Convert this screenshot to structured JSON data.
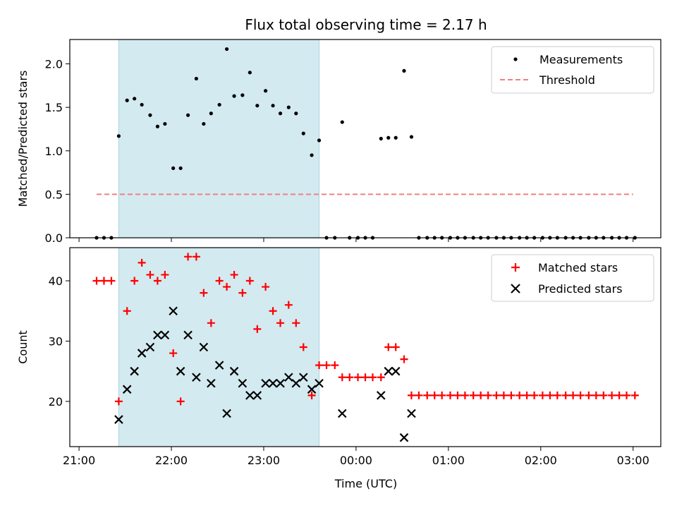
{
  "chart_data": {
    "title": "Flux total observing time = 2.17 h",
    "xlabel": "Time (UTC)",
    "x_unit": "hours",
    "x_tick_values": [
      21,
      22,
      23,
      24,
      25,
      26,
      27
    ],
    "x_tick_labels": [
      "21:00",
      "22:00",
      "23:00",
      "00:00",
      "01:00",
      "02:00",
      "03:00"
    ],
    "xlim": [
      20.9,
      27.3
    ],
    "observing_window": {
      "start": 21.43,
      "end": 23.6,
      "color": "#d3eaf0"
    },
    "panels": [
      {
        "type": "scatter",
        "ylabel": "Matched/Predicted stars",
        "ylim": [
          0,
          2.28
        ],
        "yticks": [
          0.0,
          0.5,
          1.0,
          1.5,
          2.0
        ],
        "ytick_labels": [
          "0.0",
          "0.5",
          "1.0",
          "1.5",
          "2.0"
        ],
        "legend_position": "top-right",
        "series": [
          {
            "name": "Measurements",
            "marker": "dot",
            "color": "#000000",
            "points": [
              [
                21.19,
                0
              ],
              [
                21.27,
                0
              ],
              [
                21.35,
                0
              ],
              [
                21.43,
                1.17
              ],
              [
                21.52,
                1.58
              ],
              [
                21.6,
                1.6
              ],
              [
                21.68,
                1.53
              ],
              [
                21.77,
                1.41
              ],
              [
                21.85,
                1.28
              ],
              [
                21.93,
                1.31
              ],
              [
                22.02,
                0.8
              ],
              [
                22.1,
                0.8
              ],
              [
                22.18,
                1.41
              ],
              [
                22.27,
                1.83
              ],
              [
                22.35,
                1.31
              ],
              [
                22.43,
                1.43
              ],
              [
                22.52,
                1.53
              ],
              [
                22.6,
                2.17
              ],
              [
                22.68,
                1.63
              ],
              [
                22.77,
                1.64
              ],
              [
                22.85,
                1.9
              ],
              [
                22.93,
                1.52
              ],
              [
                23.02,
                1.69
              ],
              [
                23.1,
                1.52
              ],
              [
                23.18,
                1.43
              ],
              [
                23.27,
                1.5
              ],
              [
                23.35,
                1.43
              ],
              [
                23.43,
                1.2
              ],
              [
                23.52,
                0.95
              ],
              [
                23.6,
                1.12
              ],
              [
                23.68,
                0
              ],
              [
                23.77,
                0
              ],
              [
                23.85,
                1.33
              ],
              [
                23.93,
                0
              ],
              [
                24.02,
                0
              ],
              [
                24.1,
                0
              ],
              [
                24.18,
                0
              ],
              [
                24.27,
                1.14
              ],
              [
                24.35,
                1.15
              ],
              [
                24.43,
                1.15
              ],
              [
                24.52,
                1.92
              ],
              [
                24.6,
                1.16
              ],
              [
                24.68,
                0
              ],
              [
                24.77,
                0
              ],
              [
                24.85,
                0
              ],
              [
                24.93,
                0
              ],
              [
                25.02,
                0
              ],
              [
                25.1,
                0
              ],
              [
                25.18,
                0
              ],
              [
                25.27,
                0
              ],
              [
                25.35,
                0
              ],
              [
                25.43,
                0
              ],
              [
                25.52,
                0
              ],
              [
                25.6,
                0
              ],
              [
                25.68,
                0
              ],
              [
                25.77,
                0
              ],
              [
                25.85,
                0
              ],
              [
                25.93,
                0
              ],
              [
                26.02,
                0
              ],
              [
                26.1,
                0
              ],
              [
                26.18,
                0
              ],
              [
                26.27,
                0
              ],
              [
                26.35,
                0
              ],
              [
                26.43,
                0
              ],
              [
                26.52,
                0
              ],
              [
                26.6,
                0
              ],
              [
                26.68,
                0
              ],
              [
                26.77,
                0
              ],
              [
                26.85,
                0
              ],
              [
                26.93,
                0
              ],
              [
                27.02,
                0
              ]
            ]
          },
          {
            "name": "Threshold",
            "marker": "dashed-line",
            "color": "#f08080",
            "points": [
              [
                21.19,
                0.5
              ],
              [
                27.0,
                0.5
              ]
            ]
          }
        ]
      },
      {
        "type": "scatter",
        "ylabel": "Count",
        "ylim": [
          12.5,
          45.5
        ],
        "yticks": [
          20,
          30,
          40
        ],
        "ytick_labels": [
          "20",
          "30",
          "40"
        ],
        "legend_position": "top-right",
        "series": [
          {
            "name": "Matched stars",
            "marker": "plus",
            "color": "#ff0000",
            "points": [
              [
                21.19,
                40
              ],
              [
                21.27,
                40
              ],
              [
                21.35,
                40
              ],
              [
                21.43,
                20
              ],
              [
                21.52,
                35
              ],
              [
                21.6,
                40
              ],
              [
                21.68,
                43
              ],
              [
                21.77,
                41
              ],
              [
                21.85,
                40
              ],
              [
                21.93,
                41
              ],
              [
                22.02,
                28
              ],
              [
                22.1,
                20
              ],
              [
                22.18,
                44
              ],
              [
                22.27,
                44
              ],
              [
                22.35,
                38
              ],
              [
                22.43,
                33
              ],
              [
                22.52,
                40
              ],
              [
                22.6,
                39
              ],
              [
                22.68,
                41
              ],
              [
                22.77,
                38
              ],
              [
                22.85,
                40
              ],
              [
                22.93,
                32
              ],
              [
                23.02,
                39
              ],
              [
                23.1,
                35
              ],
              [
                23.18,
                33
              ],
              [
                23.27,
                36
              ],
              [
                23.35,
                33
              ],
              [
                23.43,
                29
              ],
              [
                23.52,
                21
              ],
              [
                23.6,
                26
              ],
              [
                23.68,
                26
              ],
              [
                23.77,
                26
              ],
              [
                23.85,
                24
              ],
              [
                23.93,
                24
              ],
              [
                24.02,
                24
              ],
              [
                24.1,
                24
              ],
              [
                24.18,
                24
              ],
              [
                24.27,
                24
              ],
              [
                24.35,
                29
              ],
              [
                24.43,
                29
              ],
              [
                24.52,
                27
              ],
              [
                24.6,
                21
              ],
              [
                24.68,
                21
              ],
              [
                24.77,
                21
              ],
              [
                24.85,
                21
              ],
              [
                24.93,
                21
              ],
              [
                25.02,
                21
              ],
              [
                25.1,
                21
              ],
              [
                25.18,
                21
              ],
              [
                25.27,
                21
              ],
              [
                25.35,
                21
              ],
              [
                25.43,
                21
              ],
              [
                25.52,
                21
              ],
              [
                25.6,
                21
              ],
              [
                25.68,
                21
              ],
              [
                25.77,
                21
              ],
              [
                25.85,
                21
              ],
              [
                25.93,
                21
              ],
              [
                26.02,
                21
              ],
              [
                26.1,
                21
              ],
              [
                26.18,
                21
              ],
              [
                26.27,
                21
              ],
              [
                26.35,
                21
              ],
              [
                26.43,
                21
              ],
              [
                26.52,
                21
              ],
              [
                26.6,
                21
              ],
              [
                26.68,
                21
              ],
              [
                26.77,
                21
              ],
              [
                26.85,
                21
              ],
              [
                26.93,
                21
              ],
              [
                27.02,
                21
              ]
            ]
          },
          {
            "name": "Predicted stars",
            "marker": "x",
            "color": "#000000",
            "points": [
              [
                21.43,
                17
              ],
              [
                21.52,
                22
              ],
              [
                21.6,
                25
              ],
              [
                21.68,
                28
              ],
              [
                21.77,
                29
              ],
              [
                21.85,
                31
              ],
              [
                21.93,
                31
              ],
              [
                22.02,
                35
              ],
              [
                22.1,
                25
              ],
              [
                22.18,
                31
              ],
              [
                22.27,
                24
              ],
              [
                22.35,
                29
              ],
              [
                22.43,
                23
              ],
              [
                22.52,
                26
              ],
              [
                22.6,
                18
              ],
              [
                22.68,
                25
              ],
              [
                22.77,
                23
              ],
              [
                22.85,
                21
              ],
              [
                22.93,
                21
              ],
              [
                23.02,
                23
              ],
              [
                23.1,
                23
              ],
              [
                23.18,
                23
              ],
              [
                23.27,
                24
              ],
              [
                23.35,
                23
              ],
              [
                23.43,
                24
              ],
              [
                23.52,
                22
              ],
              [
                23.6,
                23
              ],
              [
                23.85,
                18
              ],
              [
                24.27,
                21
              ],
              [
                24.35,
                25
              ],
              [
                24.43,
                25
              ],
              [
                24.52,
                14
              ],
              [
                24.6,
                18
              ]
            ]
          }
        ]
      }
    ]
  }
}
